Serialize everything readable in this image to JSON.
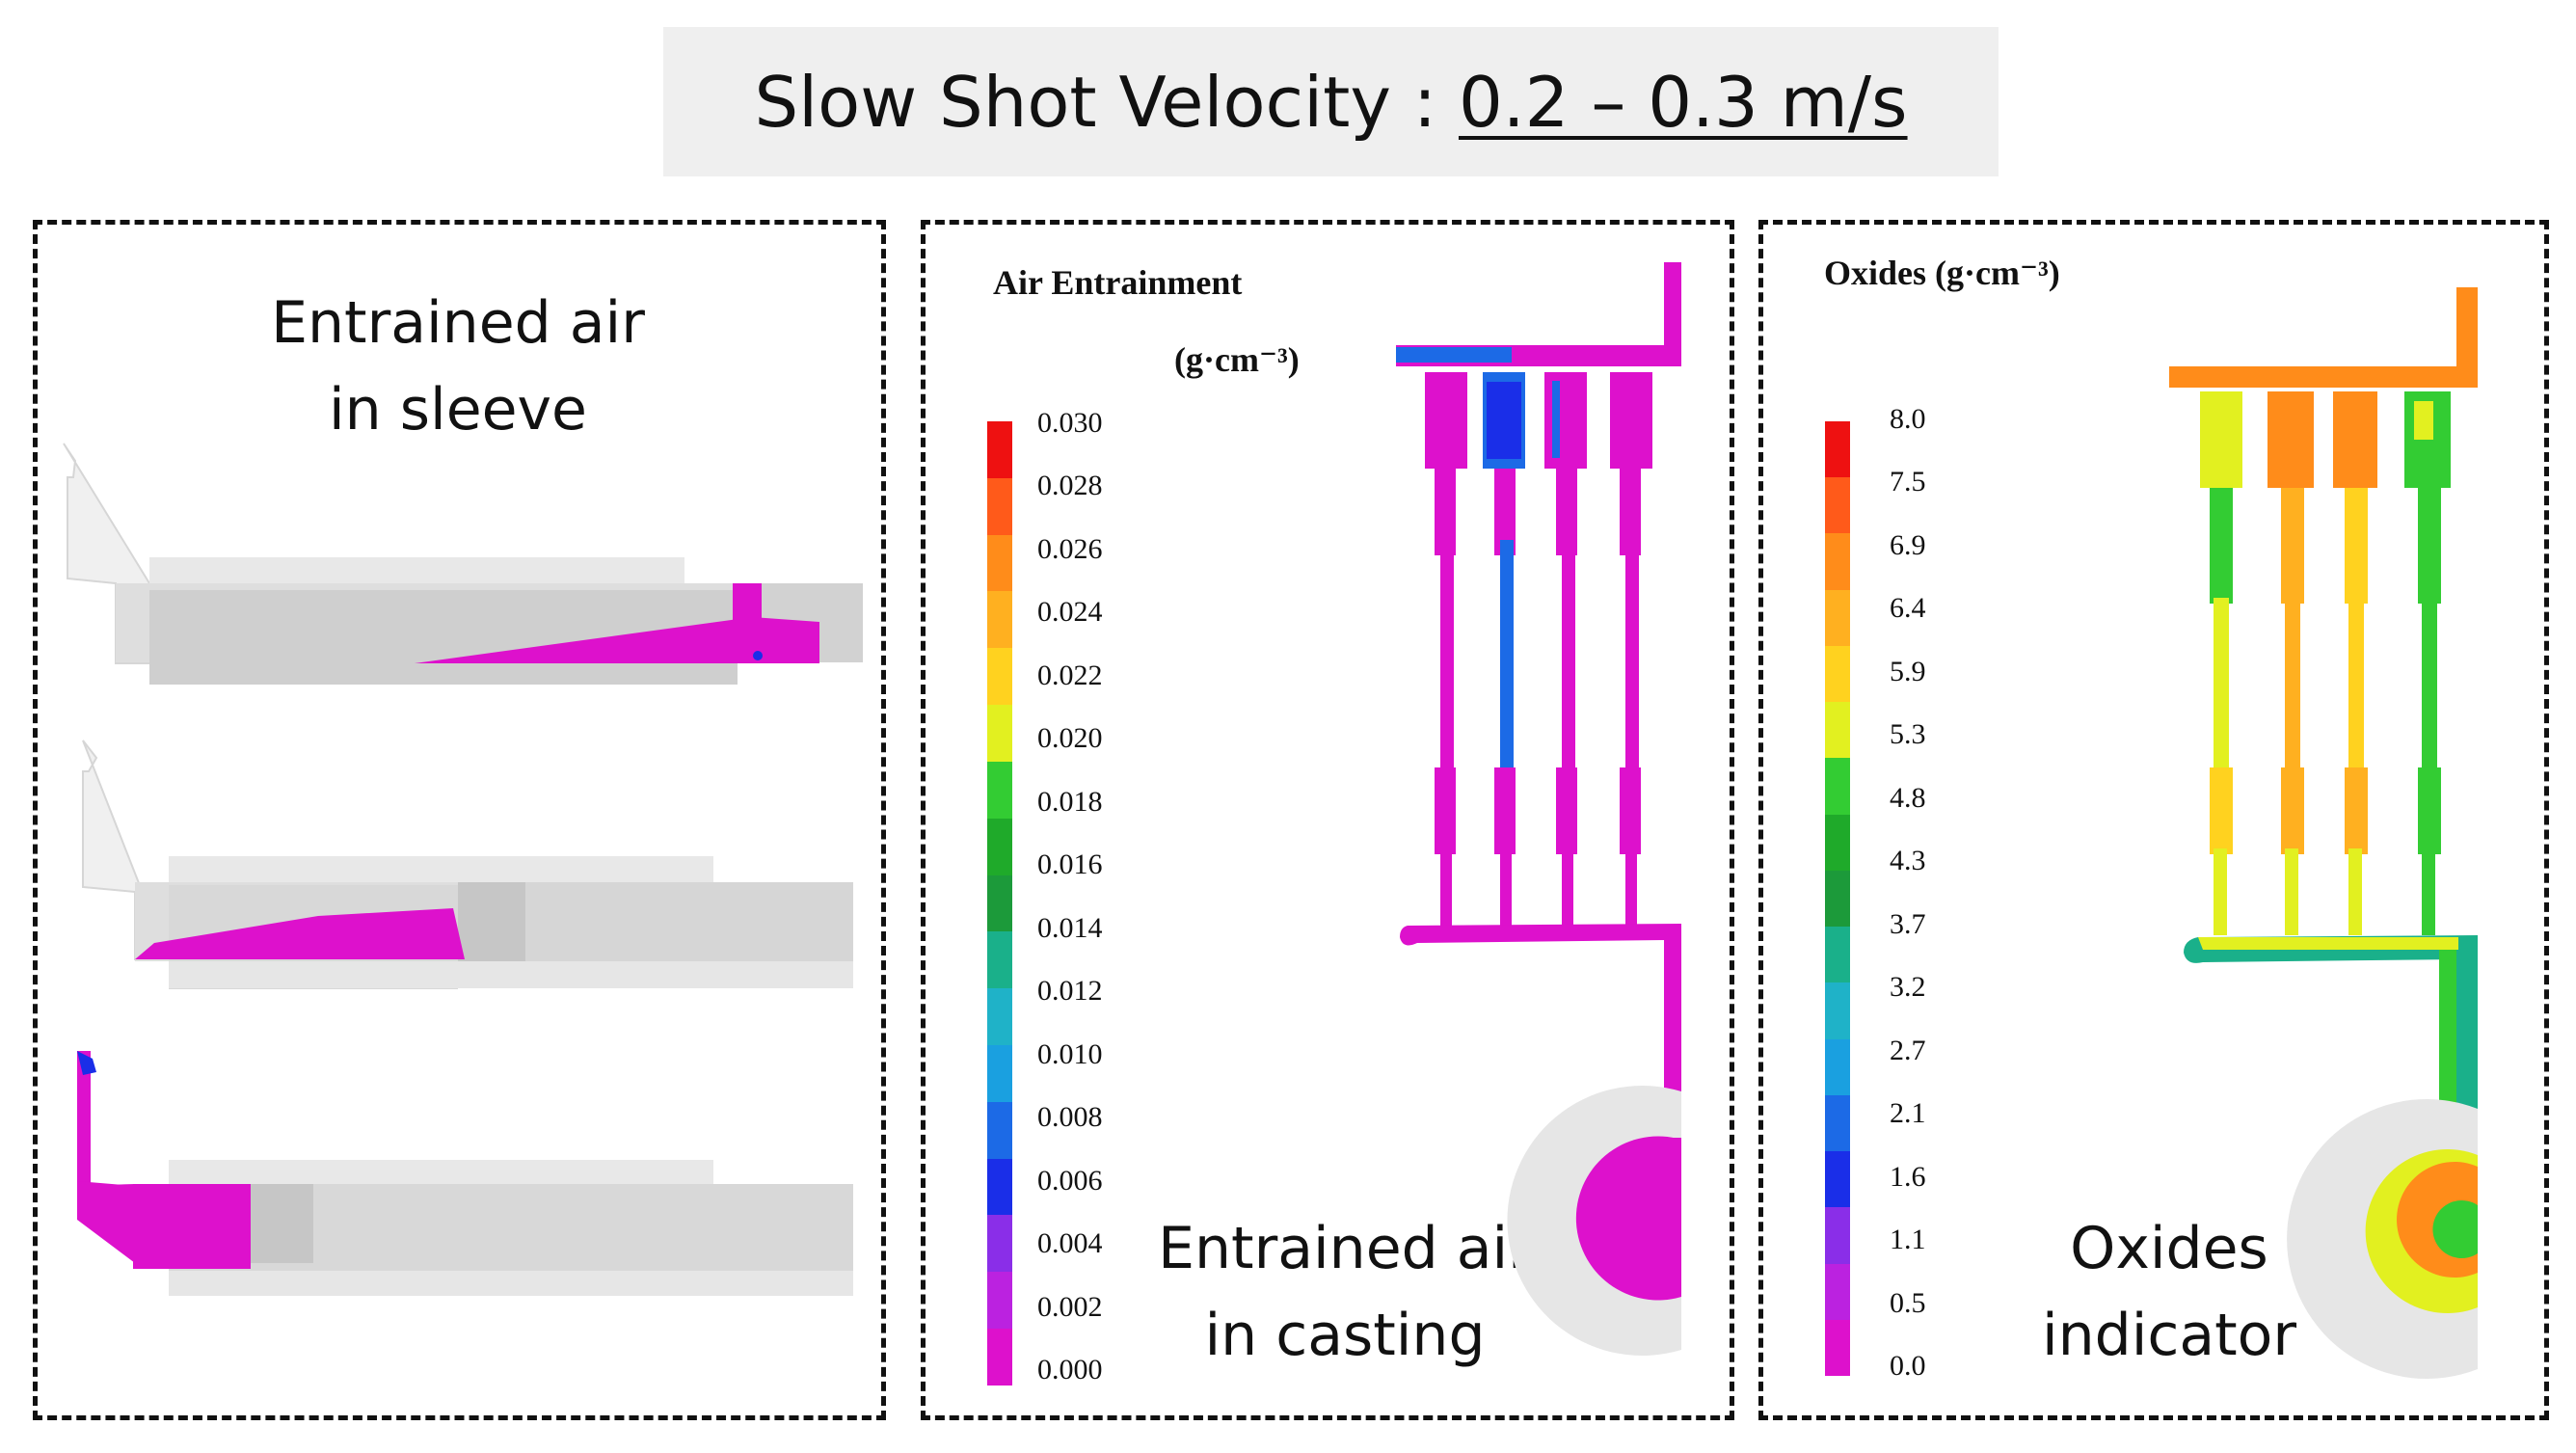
{
  "title": {
    "prefix": "Slow Shot Velocity : ",
    "value": "0.2 – 0.3 m/s"
  },
  "sleeve_panel": {
    "caption_line1": "Entrained air",
    "caption_line2": "in sleeve"
  },
  "casting_panel": {
    "legend_title": "Air Entrainment",
    "legend_unit": "(g·cm⁻³)",
    "ticks": [
      "0.030",
      "0.028",
      "0.026",
      "0.024",
      "0.022",
      "0.020",
      "0.018",
      "0.016",
      "0.014",
      "0.012",
      "0.010",
      "0.008",
      "0.006",
      "0.004",
      "0.002",
      "0.000"
    ],
    "caption_line1": "Entrained air",
    "caption_line2": "in casting"
  },
  "oxides_panel": {
    "legend_title": "Oxides  (g·cm⁻³)",
    "ticks": [
      "8.0",
      "7.5",
      "6.9",
      "6.4",
      "5.9",
      "5.3",
      "4.8",
      "4.3",
      "3.7",
      "3.2",
      "2.7",
      "2.1",
      "1.6",
      "1.1",
      "0.5",
      "0.0"
    ],
    "caption_line1": "Oxides",
    "caption_line2": "indicator"
  },
  "colors": {
    "scale": [
      "#ee1111",
      "#ff5a1a",
      "#ff8c1a",
      "#ffb020",
      "#ffd21f",
      "#e2f020",
      "#33cc33",
      "#1faa2a",
      "#1c9a3a",
      "#1ab08a",
      "#1fb2c8",
      "#1aa0e0",
      "#1c6ae6",
      "#1a2ee8",
      "#8a2ee8",
      "#bb22e0",
      "#dd11cc"
    ],
    "magenta": "#dd11cc",
    "gray_light": "#e4e4e4",
    "gray_mid": "#cfcfcf",
    "gray_dark": "#bcbcbc"
  }
}
